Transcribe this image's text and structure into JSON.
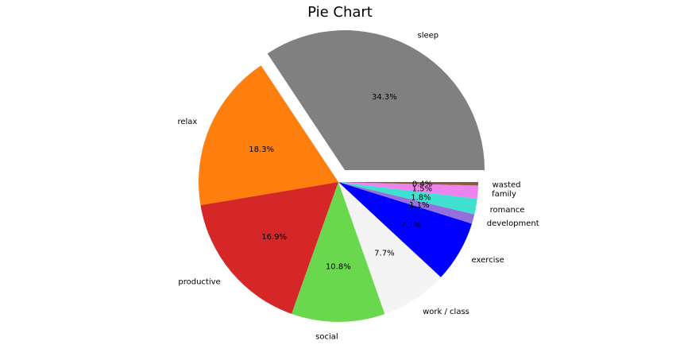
{
  "chart_data": {
    "type": "pie",
    "title": "Pie Chart",
    "explode": "sleep",
    "slices": [
      {
        "label": "sleep",
        "value": 34.3,
        "pct_label": "34.3%",
        "color": "#808080"
      },
      {
        "label": "relax",
        "value": 18.3,
        "pct_label": "18.3%",
        "color": "#ff7f0e"
      },
      {
        "label": "productive",
        "value": 16.9,
        "pct_label": "16.9%",
        "color": "#d62728"
      },
      {
        "label": "social",
        "value": 10.8,
        "pct_label": "10.8%",
        "color": "#69d84f"
      },
      {
        "label": "work / class",
        "value": 7.7,
        "pct_label": "7.7%",
        "color": "#f4f4f4"
      },
      {
        "label": "exercise",
        "value": 7.1,
        "pct_label": "7.1%",
        "color": "#0000ff"
      },
      {
        "label": "development",
        "value": 1.1,
        "pct_label": "1.1%",
        "color": "#9370db"
      },
      {
        "label": "romance",
        "value": 1.8,
        "pct_label": "1.8%",
        "color": "#40e0d0"
      },
      {
        "label": "family",
        "value": 1.5,
        "pct_label": "1.5%",
        "color": "#ee82ee"
      },
      {
        "label": "wasted",
        "value": 0.4,
        "pct_label": "0.4%",
        "color": "#8b5a3c"
      }
    ]
  }
}
